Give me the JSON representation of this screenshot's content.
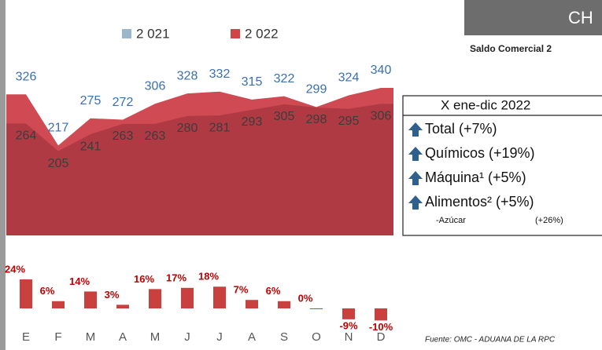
{
  "header": {
    "title": "CH",
    "subtitle": "Saldo Comercial 2"
  },
  "chart_data": [
    {
      "type": "area",
      "ylim": [
        25,
        360
      ],
      "series": [
        {
          "name": "2 021",
          "color": "#9bb7cc",
          "area_color": "#cf4a52",
          "label_color": "#3a6fb0",
          "values": [
            326,
            217,
            275,
            272,
            306,
            328,
            332,
            315,
            322,
            299,
            324,
            340
          ]
        },
        {
          "name": "2 022",
          "color": "#d24347",
          "area_color": "#b03a44",
          "label_color": "#3c3c3c",
          "values": [
            264,
            205,
            241,
            263,
            263,
            280,
            281,
            293,
            305,
            298,
            295,
            306
          ]
        }
      ]
    },
    {
      "type": "bar",
      "categories": [
        "E",
        "F",
        "M",
        "A",
        "M",
        "J",
        "J",
        "A",
        "S",
        "O",
        "N",
        "D"
      ],
      "values": [
        24,
        6,
        14,
        3,
        16,
        17,
        18,
        7,
        6,
        0,
        -9,
        -10
      ],
      "value_labels": [
        "24%",
        "6%",
        "14%",
        "3%",
        "16%",
        "17%",
        "18%",
        "7%",
        "6%",
        "0%",
        "-9%",
        "-10%"
      ],
      "color": "#c8413f",
      "label_color": "#c00000",
      "ylim": [
        -12,
        26
      ]
    }
  ],
  "summary": {
    "title": "X ene-dic 2022",
    "items": [
      "Total (+7%)",
      "Químicos  (+19%)",
      "Máquina¹  (+5%)",
      "Alimentos² (+5%)"
    ],
    "sub_item": {
      "label": "-Azúcar",
      "change": "(+26%)"
    }
  },
  "source": "Fuente: OMC - ADUANA DE LA RPC"
}
